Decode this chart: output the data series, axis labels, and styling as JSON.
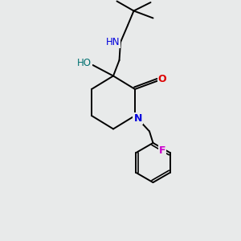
{
  "bg_color": "#e8eaea",
  "atom_colors": {
    "C": "#000000",
    "N": "#0000dd",
    "O": "#dd0000",
    "F": "#cc00cc",
    "H": "#007070"
  },
  "bond_color": "#000000",
  "bond_width": 1.4
}
